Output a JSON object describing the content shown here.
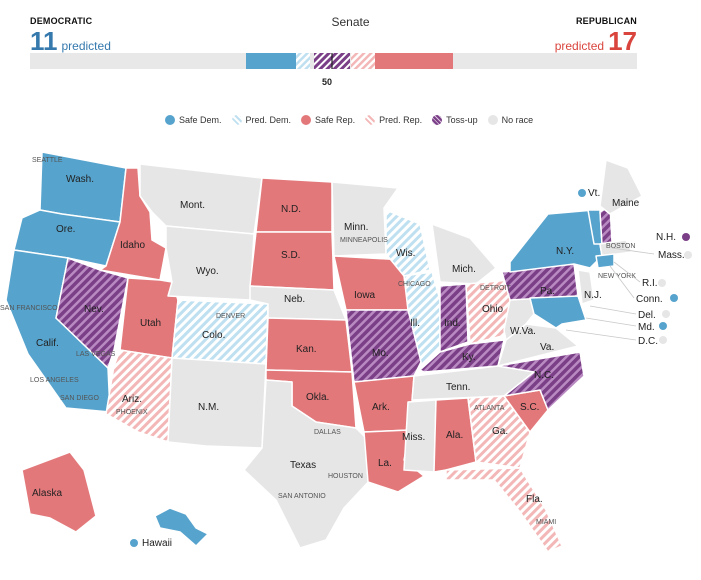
{
  "header": {
    "title": "Senate",
    "dem": {
      "label": "DEMOCRATIC",
      "count": "11",
      "word": "predicted"
    },
    "rep": {
      "label": "REPUBLICAN",
      "count": "17",
      "word": "predicted"
    },
    "midpoint_label": "50"
  },
  "colors": {
    "safe_dem": "#56a3cd",
    "pred_dem": "#bfe0f0",
    "safe_rep": "#e3787b",
    "pred_rep": "#f6cccc",
    "tossup": "#7a3f86",
    "no_race": "#e8e8e8",
    "dem_text": "#3579ad",
    "rep_text": "#d9453d"
  },
  "legend": [
    {
      "key": "safe_dem",
      "label": "Safe Dem."
    },
    {
      "key": "pred_dem",
      "label": "Pred. Dem."
    },
    {
      "key": "safe_rep",
      "label": "Safe Rep."
    },
    {
      "key": "pred_rep",
      "label": "Pred. Rep."
    },
    {
      "key": "tossup",
      "label": "Toss-up"
    },
    {
      "key": "no_race",
      "label": "No race"
    }
  ],
  "state_labels": [
    {
      "text": "Wash."
    },
    {
      "text": "Ore."
    },
    {
      "text": "Calif."
    },
    {
      "text": "Idaho"
    },
    {
      "text": "Nev."
    },
    {
      "text": "Utah"
    },
    {
      "text": "Ariz."
    },
    {
      "text": "Mont."
    },
    {
      "text": "Wyo."
    },
    {
      "text": "Colo."
    },
    {
      "text": "N.M."
    },
    {
      "text": "N.D."
    },
    {
      "text": "S.D."
    },
    {
      "text": "Neb."
    },
    {
      "text": "Kan."
    },
    {
      "text": "Okla."
    },
    {
      "text": "Texas"
    },
    {
      "text": "Minn."
    },
    {
      "text": "Iowa"
    },
    {
      "text": "Mo."
    },
    {
      "text": "Ark."
    },
    {
      "text": "La."
    },
    {
      "text": "Wis."
    },
    {
      "text": "Ill."
    },
    {
      "text": "Mich."
    },
    {
      "text": "Ind."
    },
    {
      "text": "Ohio"
    },
    {
      "text": "Ky."
    },
    {
      "text": "Tenn."
    },
    {
      "text": "Miss."
    },
    {
      "text": "Ala."
    },
    {
      "text": "Ga."
    },
    {
      "text": "Fla."
    },
    {
      "text": "S.C."
    },
    {
      "text": "N.C."
    },
    {
      "text": "Va."
    },
    {
      "text": "W.Va."
    },
    {
      "text": "Pa."
    },
    {
      "text": "N.Y."
    },
    {
      "text": "Maine"
    },
    {
      "text": "Vt."
    },
    {
      "text": "N.H."
    },
    {
      "text": "Mass."
    },
    {
      "text": "N.J."
    },
    {
      "text": "R.I."
    },
    {
      "text": "Conn."
    },
    {
      "text": "Del."
    },
    {
      "text": "Md."
    },
    {
      "text": "D.C."
    },
    {
      "text": "Alaska"
    },
    {
      "text": "Hawaii"
    }
  ],
  "city_labels": [
    "SEATTLE",
    "SAN FRANCISCO",
    "LAS VEGAS",
    "LOS ANGELES",
    "SAN DIEGO",
    "PHOENIX",
    "DENVER",
    "MINNEAPOLIS",
    "CHICAGO",
    "DETROIT",
    "BOSTON",
    "NEW YORK",
    "DALLAS",
    "HOUSTON",
    "SAN ANTONIO",
    "ATLANTA",
    "MIAMI"
  ]
}
